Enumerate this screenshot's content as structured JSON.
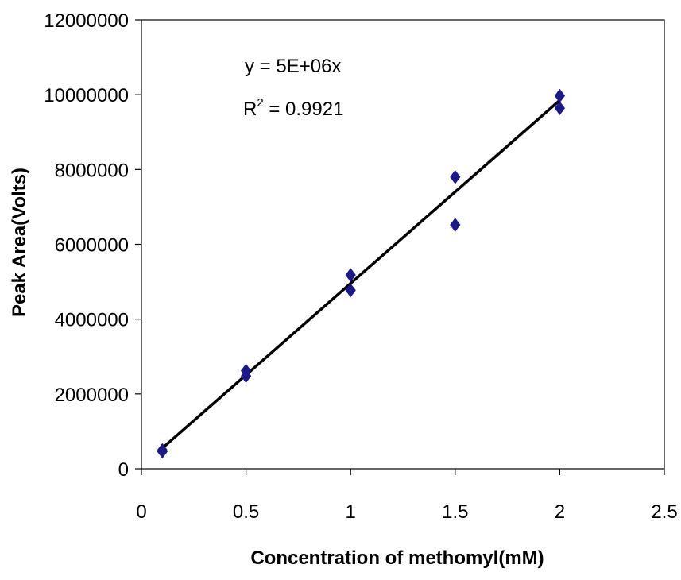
{
  "chart_data": {
    "type": "scatter",
    "xlabel": "Concentration of methomyl(mM)",
    "ylabel": "Peak Area(Volts)",
    "xlim": [
      0,
      2.5
    ],
    "ylim": [
      0,
      12000000
    ],
    "x_ticks": [
      "0",
      "0.5",
      "1",
      "1.5",
      "2",
      "2.5"
    ],
    "x_tick_values": [
      0,
      0.5,
      1,
      1.5,
      2,
      2.5
    ],
    "y_ticks": [
      "0",
      "2000000",
      "4000000",
      "6000000",
      "8000000",
      "10000000",
      "12000000"
    ],
    "y_tick_values": [
      0,
      2000000,
      4000000,
      6000000,
      8000000,
      10000000,
      12000000
    ],
    "grid": false,
    "legend": "none",
    "series": [
      {
        "marker": "diamond",
        "color": "#1a1a8c",
        "points": [
          {
            "x": 0.1,
            "y": 500000
          },
          {
            "x": 0.1,
            "y": 460000
          },
          {
            "x": 0.5,
            "y": 2620000
          },
          {
            "x": 0.5,
            "y": 2480000
          },
          {
            "x": 1.0,
            "y": 5180000
          },
          {
            "x": 1.0,
            "y": 4770000
          },
          {
            "x": 1.5,
            "y": 7800000
          },
          {
            "x": 1.5,
            "y": 6520000
          },
          {
            "x": 2.0,
            "y": 9970000
          },
          {
            "x": 2.0,
            "y": 9640000
          }
        ]
      }
    ],
    "trendline": {
      "x": [
        0.1,
        2.0
      ],
      "y": [
        550000,
        9850000
      ],
      "color": "#000000"
    },
    "annotations": {
      "equation": "y = 5E+06x",
      "r2_prefix": "R",
      "r2_sup": "2",
      "r2_value": " = 0.9921"
    }
  }
}
